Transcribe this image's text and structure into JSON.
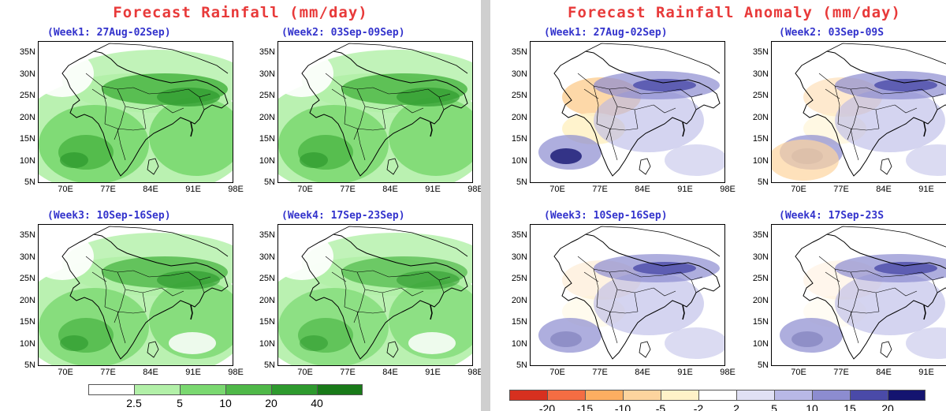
{
  "left": {
    "title": "Forecast Rainfall (mm/day)",
    "weeks": [
      {
        "label": "(Week1: 27Aug-02Sep)"
      },
      {
        "label": "(Week2: 03Sep-09Sep)"
      },
      {
        "label": "(Week3: 10Sep-16Sep)"
      },
      {
        "label": "(Week4: 17Sep-23Sep)"
      }
    ],
    "colorbar": {
      "ticks": [
        "2.5",
        "5",
        "10",
        "20",
        "40"
      ],
      "colors": [
        "#ffffff",
        "#b2f0a8",
        "#7ad870",
        "#4fb848",
        "#2e9a2e",
        "#197a19"
      ]
    }
  },
  "right": {
    "title": "Forecast Rainfall Anomaly (mm/day)",
    "weeks": [
      {
        "label": "(Week1: 27Aug-02Sep)"
      },
      {
        "label": "(Week2: 03Sep-09S"
      },
      {
        "label": "(Week3: 10Sep-16Sep)"
      },
      {
        "label": "(Week4: 17Sep-23S"
      }
    ],
    "colorbar": {
      "ticks": [
        "-20",
        "-15",
        "-10",
        "-5",
        "-2",
        "2",
        "5",
        "10",
        "15",
        "20"
      ],
      "colors": [
        "#d7301f",
        "#f46d43",
        "#fdae61",
        "#fdd49e",
        "#fff2c8",
        "#ffffff",
        "#e0e0f4",
        "#b8b8e6",
        "#8c8cd0",
        "#4a4aa8",
        "#141470"
      ]
    }
  },
  "axes": {
    "lat_ticks": [
      "35N",
      "30N",
      "25N",
      "20N",
      "15N",
      "10N",
      "5N"
    ],
    "lon_ticks": [
      "70E",
      "77E",
      "84E",
      "91E",
      "98E"
    ]
  }
}
